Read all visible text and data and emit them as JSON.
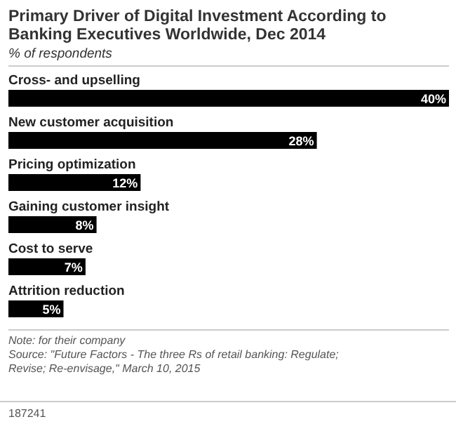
{
  "chart_data": {
    "type": "bar",
    "orientation": "horizontal",
    "title": "Primary Driver of Digital Investment According to Banking Executives Worldwide, Dec 2014",
    "subtitle": "% of respondents",
    "categories": [
      "Cross- and upselling",
      "New customer acquisition",
      "Pricing optimization",
      "Gaining customer insight",
      "Cost to serve",
      "Attrition reduction"
    ],
    "values": [
      40,
      28,
      12,
      8,
      7,
      5
    ],
    "value_labels": [
      "40%",
      "28%",
      "12%",
      "8%",
      "7%",
      "5%"
    ],
    "color": "#000000",
    "annotations": [
      "Note: for their company",
      "Source: \"Future Factors - The three Rs of retail banking: Regulate; Revise; Re-envisage,\" March 10, 2015",
      "187241"
    ]
  }
}
